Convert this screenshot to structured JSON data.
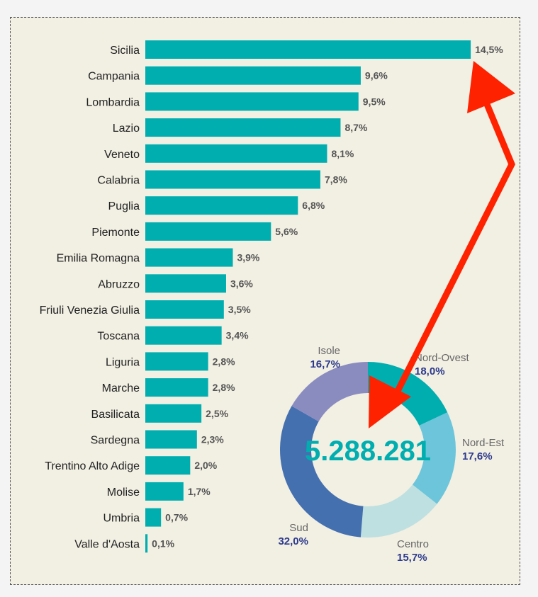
{
  "chart_data": [
    {
      "type": "bar",
      "orientation": "horizontal",
      "categories": [
        "Sicilia",
        "Campania",
        "Lombardia",
        "Lazio",
        "Veneto",
        "Calabria",
        "Puglia",
        "Piemonte",
        "Emilia Romagna",
        "Abruzzo",
        "Friuli Venezia Giulia",
        "Toscana",
        "Liguria",
        "Marche",
        "Basilicata",
        "Sardegna",
        "Trentino Alto Adige",
        "Molise",
        "Umbria",
        "Valle d'Aosta"
      ],
      "values": [
        14.5,
        9.6,
        9.5,
        8.7,
        8.1,
        7.8,
        6.8,
        5.6,
        3.9,
        3.6,
        3.5,
        3.4,
        2.8,
        2.8,
        2.5,
        2.3,
        2.0,
        1.7,
        0.7,
        0.1
      ],
      "data_labels": [
        "14,5%",
        "9,6%",
        "9,5%",
        "8,7%",
        "8,1%",
        "7,8%",
        "6,8%",
        "5,6%",
        "3,9%",
        "3,6%",
        "3,5%",
        "3,4%",
        "2,8%",
        "2,8%",
        "2,5%",
        "2,3%",
        "2,0%",
        "1,7%",
        "0,7%",
        "0,1%"
      ],
      "color": "#00aeb0",
      "grid": false
    },
    {
      "type": "pie",
      "variant": "donut",
      "center_label": "5.288.281",
      "slices": [
        {
          "name": "Nord-Ovest",
          "value": 18.0,
          "label": "18,0%",
          "color": "#00aeb0"
        },
        {
          "name": "Nord-Est",
          "value": 17.6,
          "label": "17,6%",
          "color": "#6cc5da"
        },
        {
          "name": "Centro",
          "value": 15.7,
          "label": "15,7%",
          "color": "#bee0e0"
        },
        {
          "name": "Sud",
          "value": 32.0,
          "label": "32,0%",
          "color": "#4470b0"
        },
        {
          "name": "Isole",
          "value": 16.7,
          "label": "16,7%",
          "color": "#8a8cc0"
        }
      ]
    }
  ],
  "annotation": {
    "arrow_color": "#ff2200"
  }
}
